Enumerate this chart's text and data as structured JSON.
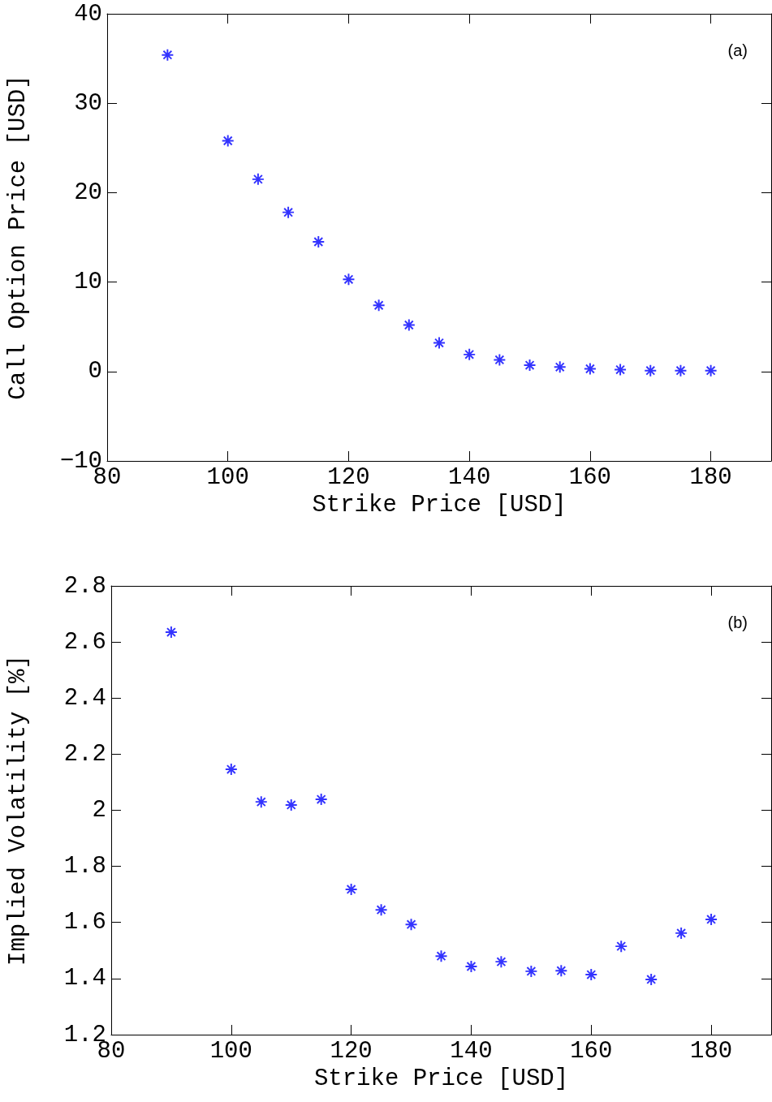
{
  "chart_data": [
    {
      "type": "scatter",
      "xlabel": "Strike Price [USD]",
      "ylabel": "Call Option Price [USD]",
      "annotations": [
        "(a)"
      ],
      "x": [
        90,
        100,
        105,
        110,
        115,
        120,
        125,
        130,
        135,
        140,
        145,
        150,
        155,
        160,
        165,
        170,
        175,
        180
      ],
      "series": [
        {
          "color": "#0000ff",
          "values": [
            35.4,
            25.8,
            21.5,
            17.8,
            14.5,
            10.3,
            7.4,
            5.2,
            3.2,
            1.9,
            1.3,
            0.7,
            0.5,
            0.3,
            0.2,
            0.1,
            0.1,
            0.1
          ]
        }
      ],
      "xlim": [
        80,
        190
      ],
      "xticks": [
        80,
        100,
        120,
        140,
        160,
        180
      ],
      "ylim": [
        -10,
        40
      ],
      "yticks": [
        {
          "value": -10,
          "label": "−10"
        },
        0,
        10,
        20,
        30,
        40
      ],
      "grid": false,
      "marker": "star"
    },
    {
      "type": "scatter",
      "xlabel": "Strike Price [USD]",
      "ylabel": "Implied Volatility [%]",
      "annotations": [
        "(b)"
      ],
      "x": [
        90,
        100,
        105,
        110,
        115,
        120,
        125,
        130,
        135,
        140,
        145,
        150,
        155,
        160,
        165,
        170,
        175,
        180
      ],
      "series": [
        {
          "color": "#0000ff",
          "values": [
            2.635,
            2.146,
            2.03,
            2.019,
            2.039,
            1.718,
            1.645,
            1.593,
            1.48,
            1.443,
            1.46,
            1.426,
            1.428,
            1.414,
            1.515,
            1.397,
            1.562,
            1.611
          ]
        }
      ],
      "xlim": [
        80,
        190
      ],
      "xticks": [
        80,
        100,
        120,
        140,
        160,
        180
      ],
      "ylim": [
        1.2,
        2.8
      ],
      "yticks": [
        1.2,
        1.4,
        1.6,
        1.8,
        2,
        2.2,
        2.4,
        2.6,
        2.8
      ],
      "grid": false,
      "marker": "star"
    }
  ]
}
